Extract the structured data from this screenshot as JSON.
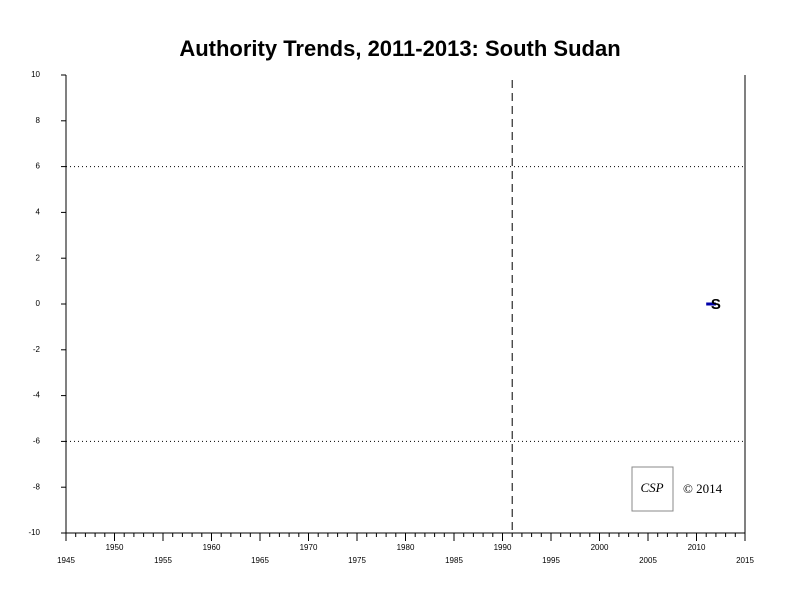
{
  "chart_data": {
    "type": "line",
    "title": "Authority Trends, 2011-2013: South Sudan",
    "x": [
      2011,
      2012
    ],
    "series": [
      {
        "values": [
          0,
          0
        ],
        "color": "#0000aa",
        "marker_label": "S"
      }
    ],
    "xlim": [
      1945,
      2015
    ],
    "xticks": [
      1945,
      1950,
      1955,
      1960,
      1965,
      1970,
      1975,
      1980,
      1985,
      1990,
      1995,
      2000,
      2005,
      2010,
      2015
    ],
    "ylim": [
      -10,
      10
    ],
    "yticks": [
      -10,
      -8,
      -6,
      -4,
      -2,
      0,
      2,
      4,
      6,
      8,
      10
    ],
    "reference_hlines": [
      6,
      -6
    ],
    "reference_vline": 1991,
    "logo": "CSP",
    "copyright": "© 2014"
  }
}
